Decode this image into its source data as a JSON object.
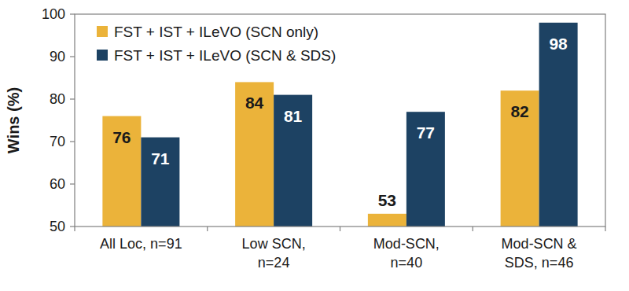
{
  "chart_data": {
    "type": "bar",
    "y_label": "Wins (%)",
    "categories": [
      "All Loc, n=91",
      "Low SCN,\nn=24",
      "Mod-SCN,\nn=40",
      "Mod-SCN &\nSDS, n=46"
    ],
    "series": [
      {
        "name": "FST + IST + ILeVO (SCN only)",
        "color": "#ebb33a",
        "values": [
          76,
          84,
          53,
          82
        ]
      },
      {
        "name": "FST + IST + ILeVO (SCN & SDS)",
        "color": "#1d4263",
        "values": [
          71,
          81,
          77,
          98
        ]
      }
    ],
    "ylim": [
      50,
      100
    ],
    "yticks": [
      50,
      60,
      70,
      80,
      90,
      100
    ],
    "grid": false,
    "legend": "top-left",
    "data_labels": true
  }
}
